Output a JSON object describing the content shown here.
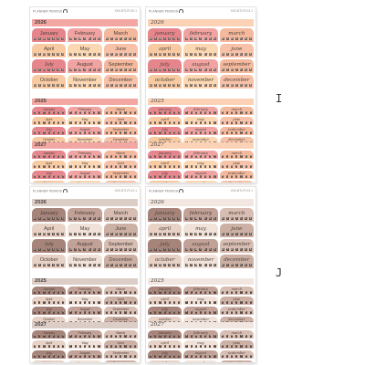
{
  "brand": "PLANNER PERKSS",
  "year_main": "2026",
  "year_second": "2025",
  "year_third": "2027",
  "months": [
    "January",
    "February",
    "March",
    "April",
    "May",
    "June",
    "July",
    "August",
    "September",
    "October",
    "November",
    "December"
  ],
  "months_script": [
    "january",
    "february",
    "march",
    "april",
    "may",
    "june",
    "july",
    "august",
    "september",
    "october",
    "november",
    "december"
  ],
  "weekdays": [
    "M",
    "T",
    "W",
    "T",
    "F",
    "S",
    "S"
  ],
  "label_i": "I",
  "label_j": "J",
  "sheets": [
    {
      "id": "I-left",
      "style": "print",
      "code": "YAS-BTLPl-00.1",
      "colors": [
        "#e6868c",
        "#f0a3a1",
        "#f4b99c",
        "#f8caa2",
        "#fbd7b2",
        "#f7c2a8"
      ],
      "year_bar": "#f3a7a3",
      "dot": "#6e5d57"
    },
    {
      "id": "I-right",
      "style": "script",
      "code": "YAS-BTLPl-03.1",
      "colors": [
        "#e6868c",
        "#f0a3a1",
        "#f4b99c",
        "#f8caa2",
        "#fbd7b2",
        "#f7c2a8"
      ],
      "year_bar": "#fbd2b6",
      "dot": "#6e5d57"
    },
    {
      "id": "J-left",
      "style": "print",
      "code": "YAS-BTLPl-04.1",
      "colors": [
        "#a7847a",
        "#c2a196",
        "#d8bdb2",
        "#e8d2c6",
        "#f1e2d9",
        "#cdb0a4"
      ],
      "year_bar": "#dccdc7",
      "dot": "#5a4a44"
    },
    {
      "id": "J-right",
      "style": "script",
      "code": "YAS-BTLPl-03.1",
      "colors": [
        "#a7847a",
        "#c2a196",
        "#d8bdb2",
        "#e8d2c6",
        "#f1e2d9",
        "#cdb0a4"
      ],
      "year_bar": "#f1e6e0",
      "dot": "#5a4a44"
    }
  ]
}
